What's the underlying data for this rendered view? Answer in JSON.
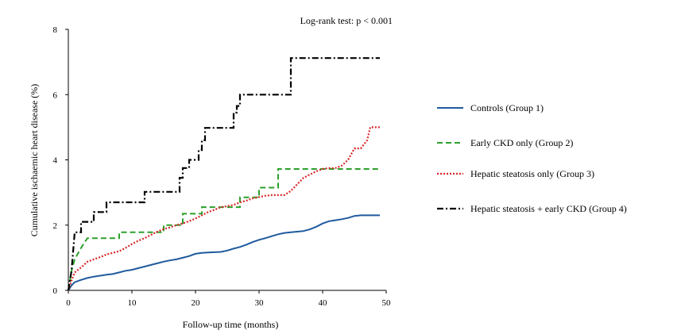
{
  "chart_data": {
    "type": "line",
    "title": "",
    "xlabel": "Follow-up time (months)",
    "ylabel": "Cumulative ischaemic heart disease (%)",
    "xlim": [
      0,
      50
    ],
    "ylim": [
      0,
      8
    ],
    "xticks": [
      "0",
      "10",
      "20",
      "30",
      "40",
      "50"
    ],
    "yticks": [
      "0",
      "2",
      "4",
      "6",
      "8"
    ],
    "annotation": "Log-rank test: p < 0.001",
    "grid": false,
    "legend_position": "right",
    "series": [
      {
        "name": "Controls (Group 1)",
        "color": "#1f5a9e",
        "dash": "solid",
        "points": [
          [
            0,
            0
          ],
          [
            0.5,
            0.15
          ],
          [
            1,
            0.25
          ],
          [
            2,
            0.32
          ],
          [
            3,
            0.38
          ],
          [
            4,
            0.42
          ],
          [
            5,
            0.45
          ],
          [
            6,
            0.48
          ],
          [
            7,
            0.5
          ],
          [
            8,
            0.55
          ],
          [
            9,
            0.6
          ],
          [
            10,
            0.63
          ],
          [
            11,
            0.68
          ],
          [
            12,
            0.73
          ],
          [
            13,
            0.78
          ],
          [
            14,
            0.83
          ],
          [
            15,
            0.88
          ],
          [
            16,
            0.92
          ],
          [
            17,
            0.95
          ],
          [
            18,
            1.0
          ],
          [
            19,
            1.05
          ],
          [
            20,
            1.12
          ],
          [
            21,
            1.15
          ],
          [
            22,
            1.16
          ],
          [
            23,
            1.17
          ],
          [
            24,
            1.18
          ],
          [
            25,
            1.22
          ],
          [
            26,
            1.28
          ],
          [
            27,
            1.33
          ],
          [
            28,
            1.4
          ],
          [
            29,
            1.48
          ],
          [
            30,
            1.55
          ],
          [
            31,
            1.6
          ],
          [
            32,
            1.66
          ],
          [
            33,
            1.72
          ],
          [
            34,
            1.76
          ],
          [
            35,
            1.78
          ],
          [
            36,
            1.8
          ],
          [
            37,
            1.82
          ],
          [
            38,
            1.87
          ],
          [
            39,
            1.95
          ],
          [
            40,
            2.05
          ],
          [
            41,
            2.12
          ],
          [
            42,
            2.15
          ],
          [
            43,
            2.18
          ],
          [
            44,
            2.22
          ],
          [
            45,
            2.28
          ],
          [
            46,
            2.3
          ],
          [
            49,
            2.3
          ]
        ]
      },
      {
        "name": "Early CKD only (Group 2)",
        "color": "#2ca02c",
        "dash": "dashed",
        "points": [
          [
            0,
            0
          ],
          [
            0.5,
            0.6
          ],
          [
            1,
            0.95
          ],
          [
            2,
            1.3
          ],
          [
            3,
            1.6
          ],
          [
            8,
            1.6
          ],
          [
            8,
            1.78
          ],
          [
            15,
            1.78
          ],
          [
            15,
            2.0
          ],
          [
            18,
            2.0
          ],
          [
            18,
            2.35
          ],
          [
            21,
            2.35
          ],
          [
            21,
            2.55
          ],
          [
            27,
            2.55
          ],
          [
            27,
            2.85
          ],
          [
            30,
            2.85
          ],
          [
            30,
            3.15
          ],
          [
            33,
            3.15
          ],
          [
            33,
            3.72
          ],
          [
            49,
            3.72
          ]
        ]
      },
      {
        "name": "Hepatic steatosis only (Group 3)",
        "color": "#d62728",
        "dash": "dotted",
        "points": [
          [
            0,
            0
          ],
          [
            0.5,
            0.3
          ],
          [
            1,
            0.55
          ],
          [
            2,
            0.7
          ],
          [
            3,
            0.88
          ],
          [
            4,
            0.95
          ],
          [
            5,
            1.02
          ],
          [
            6,
            1.1
          ],
          [
            7,
            1.15
          ],
          [
            8,
            1.2
          ],
          [
            9,
            1.3
          ],
          [
            10,
            1.42
          ],
          [
            11,
            1.52
          ],
          [
            12,
            1.6
          ],
          [
            13,
            1.7
          ],
          [
            14,
            1.8
          ],
          [
            15,
            1.88
          ],
          [
            16,
            1.93
          ],
          [
            17,
            2.0
          ],
          [
            18,
            2.05
          ],
          [
            19,
            2.12
          ],
          [
            20,
            2.2
          ],
          [
            21,
            2.3
          ],
          [
            22,
            2.4
          ],
          [
            23,
            2.47
          ],
          [
            24,
            2.55
          ],
          [
            25,
            2.58
          ],
          [
            26,
            2.62
          ],
          [
            27,
            2.7
          ],
          [
            28,
            2.75
          ],
          [
            29,
            2.82
          ],
          [
            30,
            2.86
          ],
          [
            31,
            2.9
          ],
          [
            32,
            2.92
          ],
          [
            34,
            2.92
          ],
          [
            35,
            3.05
          ],
          [
            36,
            3.25
          ],
          [
            37,
            3.45
          ],
          [
            38,
            3.55
          ],
          [
            39,
            3.65
          ],
          [
            40,
            3.72
          ],
          [
            41,
            3.75
          ],
          [
            42,
            3.75
          ],
          [
            43,
            3.82
          ],
          [
            44,
            4.0
          ],
          [
            45,
            4.35
          ],
          [
            46,
            4.35
          ],
          [
            47,
            4.6
          ],
          [
            47.5,
            5.0
          ],
          [
            49,
            5.0
          ]
        ]
      },
      {
        "name": "Hepatic steatosis + early CKD (Group 4)",
        "color": "#000000",
        "dash": "dashdot",
        "points": [
          [
            0,
            0
          ],
          [
            0.5,
            0.6
          ],
          [
            1,
            1.78
          ],
          [
            2,
            1.78
          ],
          [
            2,
            2.1
          ],
          [
            4,
            2.1
          ],
          [
            4,
            2.4
          ],
          [
            6,
            2.4
          ],
          [
            6,
            2.7
          ],
          [
            12,
            2.7
          ],
          [
            12,
            3.02
          ],
          [
            17.5,
            3.02
          ],
          [
            17.5,
            3.45
          ],
          [
            18,
            3.45
          ],
          [
            18,
            3.75
          ],
          [
            19,
            3.75
          ],
          [
            19,
            4.0
          ],
          [
            20.5,
            4.0
          ],
          [
            20.5,
            4.3
          ],
          [
            21,
            4.3
          ],
          [
            21,
            4.6
          ],
          [
            21.5,
            4.6
          ],
          [
            21.5,
            4.98
          ],
          [
            26,
            4.98
          ],
          [
            26,
            5.45
          ],
          [
            26.5,
            5.45
          ],
          [
            26.5,
            5.65
          ],
          [
            27,
            5.65
          ],
          [
            27,
            6.0
          ],
          [
            35,
            6.0
          ],
          [
            35,
            7.12
          ],
          [
            49,
            7.12
          ]
        ]
      }
    ]
  }
}
